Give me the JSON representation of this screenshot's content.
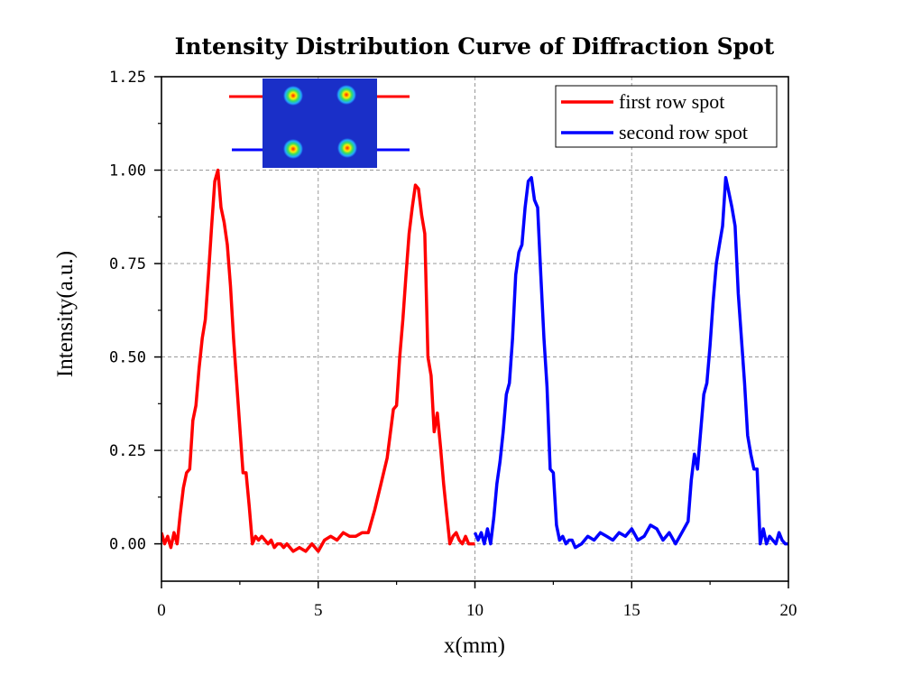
{
  "chart_data": {
    "type": "line",
    "title": "Intensity Distribution Curve of Diffraction Spot",
    "xlabel": "x(mm)",
    "ylabel": "Intensity(a.u.)",
    "xlim": [
      0,
      20
    ],
    "ylim": [
      -0.1,
      1.25
    ],
    "x_ticks": [
      "0",
      "5",
      "10",
      "15",
      "20"
    ],
    "y_ticks": [
      "0.00",
      "0.25",
      "0.50",
      "0.75",
      "1.00",
      "1.25"
    ],
    "grid": "dashed",
    "legend_position": "top-right",
    "series": [
      {
        "name": "first row spot",
        "color": "#ff0000",
        "x": [
          0.0,
          0.1,
          0.2,
          0.3,
          0.4,
          0.5,
          0.6,
          0.7,
          0.8,
          0.9,
          1.0,
          1.1,
          1.2,
          1.3,
          1.4,
          1.5,
          1.6,
          1.7,
          1.8,
          1.9,
          2.0,
          2.1,
          2.2,
          2.3,
          2.4,
          2.5,
          2.6,
          2.7,
          2.8,
          2.9,
          3.0,
          3.1,
          3.2,
          3.3,
          3.4,
          3.5,
          3.6,
          3.7,
          3.8,
          3.9,
          4.0,
          4.2,
          4.4,
          4.6,
          4.8,
          5.0,
          5.2,
          5.4,
          5.6,
          5.8,
          6.0,
          6.2,
          6.4,
          6.6,
          6.8,
          7.0,
          7.2,
          7.4,
          7.5,
          7.6,
          7.7,
          7.8,
          7.9,
          8.0,
          8.1,
          8.2,
          8.3,
          8.4,
          8.5,
          8.6,
          8.7,
          8.8,
          8.9,
          9.0,
          9.1,
          9.2,
          9.3,
          9.4,
          9.5,
          9.6,
          9.7,
          9.8,
          9.9,
          10.0
        ],
        "values": [
          0.03,
          0.0,
          0.02,
          -0.01,
          0.03,
          0.0,
          0.08,
          0.15,
          0.19,
          0.2,
          0.33,
          0.37,
          0.47,
          0.55,
          0.6,
          0.72,
          0.85,
          0.97,
          1.0,
          0.9,
          0.86,
          0.8,
          0.69,
          0.55,
          0.43,
          0.31,
          0.19,
          0.19,
          0.1,
          0.0,
          0.02,
          0.01,
          0.02,
          0.01,
          0.0,
          0.01,
          -0.01,
          0.0,
          0.0,
          -0.01,
          0.0,
          -0.02,
          -0.01,
          -0.02,
          0.0,
          -0.02,
          0.01,
          0.02,
          0.01,
          0.03,
          0.02,
          0.02,
          0.03,
          0.03,
          0.09,
          0.16,
          0.23,
          0.36,
          0.37,
          0.5,
          0.6,
          0.72,
          0.83,
          0.9,
          0.96,
          0.95,
          0.88,
          0.83,
          0.5,
          0.45,
          0.3,
          0.35,
          0.26,
          0.16,
          0.08,
          0.0,
          0.02,
          0.03,
          0.01,
          0.0,
          0.02,
          0.0,
          0.0,
          0.0
        ]
      },
      {
        "name": "second row spot",
        "color": "#0000ff",
        "x": [
          10.0,
          10.1,
          10.2,
          10.3,
          10.4,
          10.5,
          10.6,
          10.7,
          10.8,
          10.9,
          11.0,
          11.1,
          11.2,
          11.3,
          11.4,
          11.5,
          11.6,
          11.7,
          11.8,
          11.9,
          12.0,
          12.1,
          12.2,
          12.3,
          12.4,
          12.5,
          12.6,
          12.7,
          12.8,
          12.9,
          13.0,
          13.1,
          13.2,
          13.4,
          13.6,
          13.8,
          14.0,
          14.2,
          14.4,
          14.6,
          14.8,
          15.0,
          15.2,
          15.4,
          15.6,
          15.8,
          16.0,
          16.2,
          16.4,
          16.6,
          16.8,
          16.9,
          17.0,
          17.1,
          17.2,
          17.3,
          17.4,
          17.5,
          17.6,
          17.7,
          17.8,
          17.9,
          18.0,
          18.1,
          18.2,
          18.3,
          18.4,
          18.5,
          18.6,
          18.7,
          18.8,
          18.9,
          19.0,
          19.1,
          19.2,
          19.3,
          19.4,
          19.5,
          19.6,
          19.7,
          19.8,
          19.9,
          20.0
        ],
        "values": [
          0.03,
          0.01,
          0.03,
          0.0,
          0.04,
          0.0,
          0.07,
          0.16,
          0.22,
          0.3,
          0.4,
          0.43,
          0.55,
          0.72,
          0.78,
          0.8,
          0.9,
          0.97,
          0.98,
          0.92,
          0.9,
          0.72,
          0.55,
          0.42,
          0.2,
          0.19,
          0.05,
          0.01,
          0.02,
          0.0,
          0.01,
          0.01,
          -0.01,
          0.0,
          0.02,
          0.01,
          0.03,
          0.02,
          0.01,
          0.03,
          0.02,
          0.04,
          0.01,
          0.02,
          0.05,
          0.04,
          0.01,
          0.03,
          0.0,
          0.03,
          0.06,
          0.17,
          0.24,
          0.2,
          0.3,
          0.4,
          0.43,
          0.53,
          0.65,
          0.75,
          0.8,
          0.85,
          0.98,
          0.94,
          0.9,
          0.85,
          0.67,
          0.55,
          0.43,
          0.29,
          0.24,
          0.2,
          0.2,
          0.0,
          0.04,
          0.0,
          0.02,
          0.01,
          0.0,
          0.03,
          0.01,
          0.0,
          0.0
        ]
      }
    ]
  },
  "inset": {
    "description_color": "#1a2fc8",
    "row_colors": [
      "#ff0000",
      "#0000ff"
    ]
  }
}
